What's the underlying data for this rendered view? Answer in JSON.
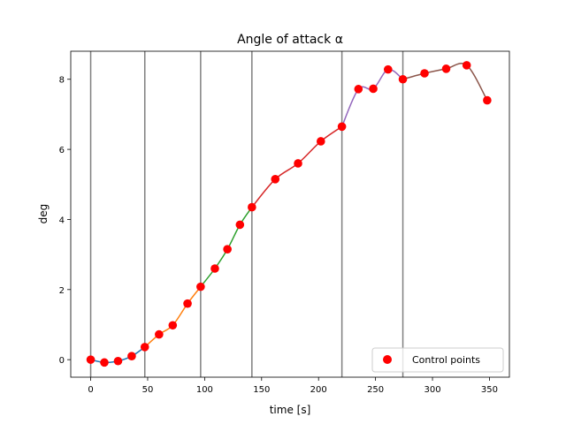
{
  "chart_data": {
    "type": "line",
    "title": "Angle of attack α",
    "xlabel": "time [s]",
    "ylabel": "deg",
    "xlim": [
      -17.5,
      367.5
    ],
    "ylim": [
      -0.5,
      8.8
    ],
    "xticks": [
      0,
      50,
      100,
      150,
      200,
      250,
      300,
      350
    ],
    "yticks": [
      0,
      2,
      4,
      6,
      8
    ],
    "grid": false,
    "legend": {
      "placement": "lower right",
      "entries": [
        "Control points"
      ]
    },
    "phase_boundaries": [
      0,
      47.5,
      96.5,
      141.5,
      220.5,
      274
    ],
    "series": [
      {
        "color": "#1f77b4",
        "points": [
          [
            0,
            0.0
          ],
          [
            12,
            -0.08
          ],
          [
            24,
            -0.04
          ],
          [
            36,
            0.1
          ],
          [
            47.5,
            0.36
          ]
        ]
      },
      {
        "color": "#ff7f0e",
        "points": [
          [
            47.5,
            0.36
          ],
          [
            60,
            0.72
          ],
          [
            72,
            0.98
          ],
          [
            85,
            1.6
          ],
          [
            96.5,
            2.08
          ]
        ]
      },
      {
        "color": "#2ca02c",
        "points": [
          [
            96.5,
            2.08
          ],
          [
            109,
            2.6
          ],
          [
            120,
            3.15
          ],
          [
            131,
            3.85
          ],
          [
            141.5,
            4.35
          ]
        ]
      },
      {
        "color": "#d62728",
        "points": [
          [
            141.5,
            4.35
          ],
          [
            162,
            5.15
          ],
          [
            182,
            5.6
          ],
          [
            202,
            6.23
          ],
          [
            220.5,
            6.65
          ]
        ]
      },
      {
        "color": "#9467bd",
        "points": [
          [
            220.5,
            6.65
          ],
          [
            235,
            7.72
          ],
          [
            248,
            7.73
          ],
          [
            261,
            8.28
          ],
          [
            274,
            8.0
          ]
        ]
      },
      {
        "color": "#8c564b",
        "points": [
          [
            274,
            8.0
          ],
          [
            293,
            8.17
          ],
          [
            312,
            8.3
          ],
          [
            330,
            8.4
          ],
          [
            348,
            7.4
          ]
        ]
      }
    ],
    "control_points": {
      "name": "Control points",
      "color": "#ff0000",
      "x": [
        0,
        12,
        24,
        36,
        47.5,
        60,
        72,
        85,
        96.5,
        109,
        120,
        131,
        141.5,
        162,
        182,
        202,
        220.5,
        235,
        248,
        261,
        274,
        293,
        312,
        330,
        348
      ],
      "y": [
        0.0,
        -0.08,
        -0.04,
        0.1,
        0.36,
        0.72,
        0.98,
        1.6,
        2.08,
        2.6,
        3.15,
        3.85,
        4.35,
        5.15,
        5.6,
        6.23,
        6.65,
        7.72,
        7.73,
        8.28,
        8.0,
        8.17,
        8.3,
        8.4,
        7.4
      ]
    }
  }
}
